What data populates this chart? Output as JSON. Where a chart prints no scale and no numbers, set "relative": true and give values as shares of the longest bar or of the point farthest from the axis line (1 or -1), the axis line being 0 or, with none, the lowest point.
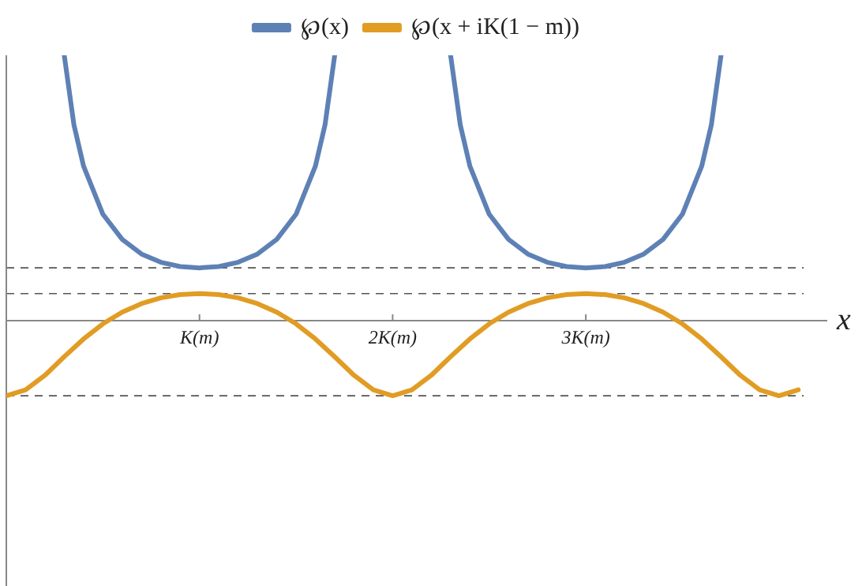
{
  "chart_data": {
    "type": "line",
    "xlabel": "x",
    "relative": true,
    "legend": "top",
    "grid": false,
    "xlim": [
      0,
      4.25
    ],
    "xticks": [
      {
        "value": 1,
        "label": "K(m)"
      },
      {
        "value": 2,
        "label": "2K(m)"
      },
      {
        "value": 3,
        "label": "3K(m)"
      }
    ],
    "ref_lines": [
      {
        "axis": "y",
        "value": 0.199,
        "line_style": "dashed",
        "color": "#555555"
      },
      {
        "axis": "y",
        "value": 0.102,
        "line_style": "dashed",
        "color": "#555555"
      },
      {
        "axis": "y",
        "value": -0.283,
        "line_style": "dashed",
        "color": "#555555"
      }
    ],
    "series": [
      {
        "name": "℘(x)",
        "color": "#5e81b5",
        "x": [
          0.3,
          0.35,
          0.4,
          0.5,
          0.6,
          0.7,
          0.8,
          0.9,
          1.0,
          1.1,
          1.2,
          1.3,
          1.4,
          1.5,
          1.6,
          1.65,
          1.7,
          2.0,
          2.3,
          2.35,
          2.4,
          2.5,
          2.6,
          2.7,
          2.8,
          2.9,
          3.0,
          3.1,
          3.2,
          3.3,
          3.4,
          3.5,
          3.6,
          3.65,
          3.7
        ],
        "values": [
          1,
          0.738,
          0.582,
          0.401,
          0.306,
          0.251,
          0.22,
          0.204,
          0.199,
          0.204,
          0.22,
          0.251,
          0.306,
          0.401,
          0.582,
          0.738,
          1,
          null,
          1,
          0.738,
          0.582,
          0.401,
          0.306,
          0.251,
          0.22,
          0.204,
          0.199,
          0.204,
          0.22,
          0.251,
          0.306,
          0.401,
          0.582,
          0.738,
          1
        ]
      },
      {
        "name": "℘(x + iK(1 − m))",
        "color": "#e19c24",
        "x": [
          0,
          0.1,
          0.2,
          0.3,
          0.4,
          0.5,
          0.6,
          0.7,
          0.8,
          0.9,
          1.0,
          1.1,
          1.2,
          1.3,
          1.4,
          1.5,
          1.6,
          1.7,
          1.8,
          1.9,
          2.0,
          2.1,
          2.2,
          2.3,
          2.4,
          2.5,
          2.6,
          2.7,
          2.8,
          2.9,
          3.0,
          3.1,
          3.2,
          3.3,
          3.4,
          3.5,
          3.6,
          3.7,
          3.8,
          3.9,
          4.0,
          4.1
        ],
        "values": [
          -0.283,
          -0.261,
          -0.206,
          -0.136,
          -0.069,
          -0.012,
          0.032,
          0.064,
          0.086,
          0.098,
          0.102,
          0.098,
          0.086,
          0.064,
          0.032,
          -0.012,
          -0.069,
          -0.136,
          -0.206,
          -0.261,
          -0.283,
          -0.261,
          -0.206,
          -0.136,
          -0.069,
          -0.012,
          0.032,
          0.064,
          0.086,
          0.098,
          0.102,
          0.098,
          0.086,
          0.064,
          0.032,
          -0.012,
          -0.069,
          -0.136,
          -0.206,
          -0.261,
          -0.283,
          -0.261
        ]
      }
    ]
  }
}
